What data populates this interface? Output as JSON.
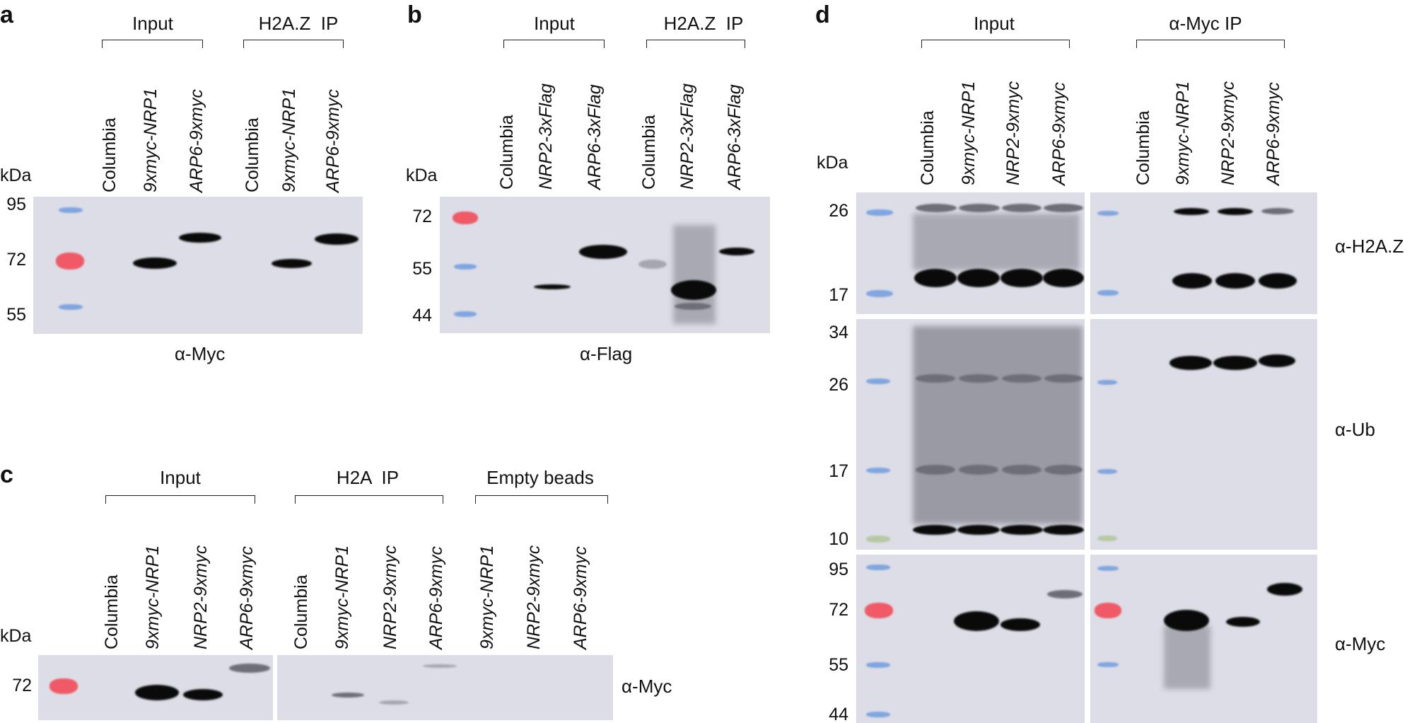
{
  "panels": {
    "a": {
      "label": "a",
      "groups": [
        "Input",
        "H2A.Z  IP"
      ],
      "lanes": [
        "Columbia",
        "9xmyc-NRP1",
        "ARP6-9xmyc",
        "Columbia",
        "9xmyc-NRP1",
        "ARP6-9xmyc"
      ],
      "kda_label": "kDa",
      "markers": [
        "95",
        "72",
        "55"
      ],
      "antibody": "α-Myc"
    },
    "b": {
      "label": "b",
      "groups": [
        "Input",
        "H2A.Z  IP"
      ],
      "lanes": [
        "Columbia",
        "NRP2-3xFlag",
        "ARP6-3xFlag",
        "Columbia",
        "NRP2-3xFlag",
        "ARP6-3xFlag"
      ],
      "kda_label": "kDa",
      "markers": [
        "72",
        "55",
        "44"
      ],
      "antibody": "α-Flag"
    },
    "c": {
      "label": "c",
      "groups": [
        "Input",
        "H2A  IP",
        "Empty beads"
      ],
      "lanes": [
        "Columbia",
        "9xmyc-NRP1",
        "NRP2-9xmyc",
        "ARP6-9xmyc",
        "Columbia",
        "9xmyc-NRP1",
        "NRP2-9xmyc",
        "ARP6-9xmyc",
        "9xmyc-NRP1",
        "NRP2-9xmyc",
        "ARP6-9xmyc"
      ],
      "kda_label": "kDa",
      "markers": [
        "72"
      ],
      "antibody": "α-Myc"
    },
    "d": {
      "label": "d",
      "groups": [
        "Input",
        "α-Myc IP"
      ],
      "lanes": [
        "Columbia",
        "9xmyc-NRP1",
        "NRP2-9xmyc",
        "ARP6-9xmyc",
        "Columbia",
        "9xmyc-NRP1",
        "NRP2-9xmyc",
        "ARP6-9xmyc"
      ],
      "kda_label": "kDa",
      "markers_top": [
        "26",
        "17"
      ],
      "markers_mid": [
        "34",
        "26",
        "17",
        "10"
      ],
      "markers_bot": [
        "95",
        "72",
        "55",
        "44"
      ],
      "antibodies": [
        "α-H2A.Z",
        "α-Ub",
        "α-Myc"
      ]
    }
  }
}
